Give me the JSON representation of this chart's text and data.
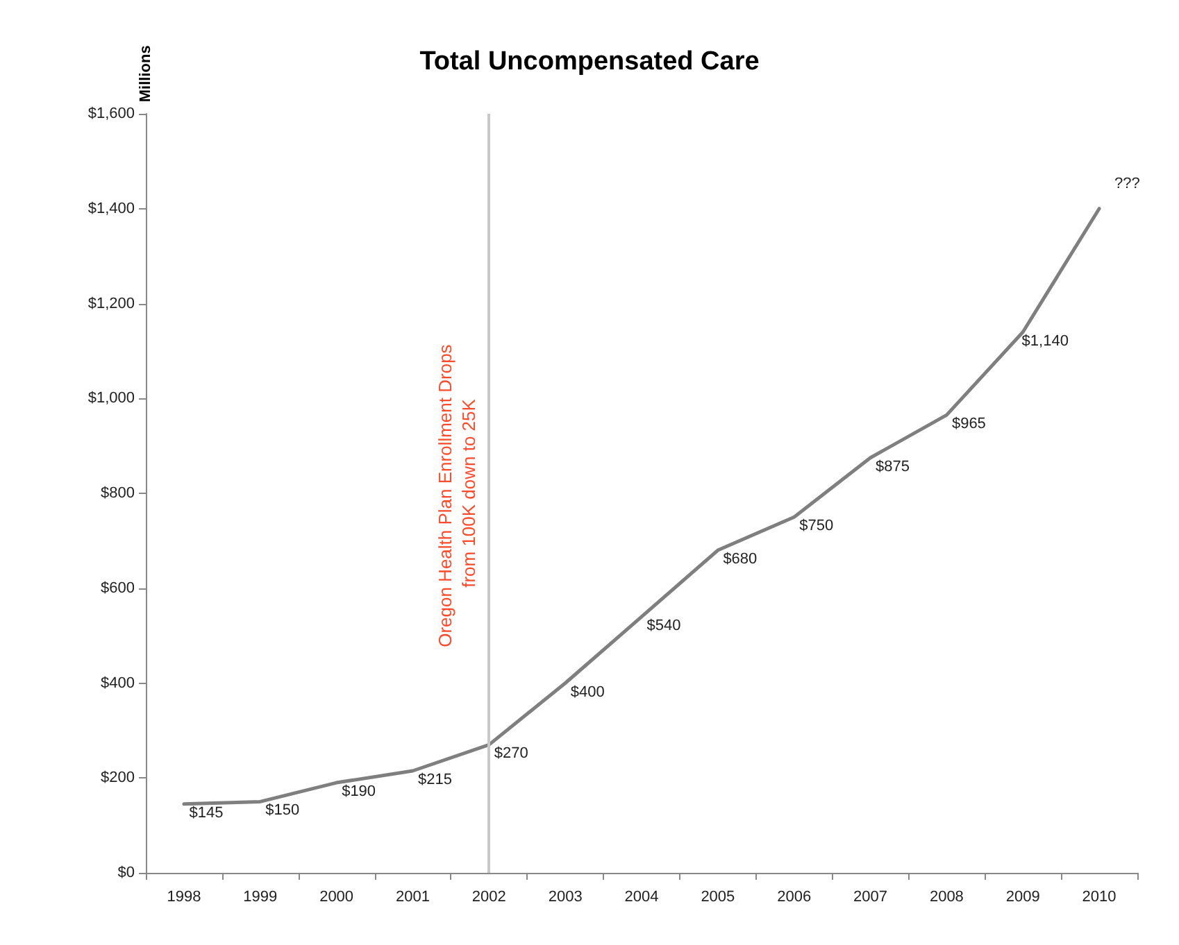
{
  "chart_data": {
    "type": "line",
    "title": "Total Uncompensated Care",
    "ylabel": "Millions",
    "categories": [
      "1998",
      "1999",
      "2000",
      "2001",
      "2002",
      "2003",
      "2004",
      "2005",
      "2006",
      "2007",
      "2008",
      "2009",
      "2010"
    ],
    "series": [
      {
        "color": "#7f7f7f",
        "values": [
          145,
          150,
          190,
          215,
          270,
          400,
          540,
          680,
          750,
          875,
          965,
          1140,
          1400
        ],
        "value_labels": [
          "$145",
          "$150",
          "$190",
          "$215",
          "$270",
          "$400",
          "$540",
          "$680",
          "$750",
          "$875",
          "$965",
          "$1,140",
          "???"
        ]
      }
    ],
    "ylim": [
      0,
      1600
    ],
    "yticks": [
      {
        "value": 0,
        "label": "$0"
      },
      {
        "value": 200,
        "label": "$200"
      },
      {
        "value": 400,
        "label": "$400"
      },
      {
        "value": 600,
        "label": "$600"
      },
      {
        "value": 800,
        "label": "$800"
      },
      {
        "value": 1000,
        "label": "$1,000"
      },
      {
        "value": 1200,
        "label": "$1,200"
      },
      {
        "value": 1400,
        "label": "$1,400"
      },
      {
        "value": 1600,
        "label": "$1,600"
      }
    ],
    "ref_lines": [
      {
        "axis": "x",
        "value": "2002",
        "label": "Oregon Health Plan Enrollment Drops from 100K down to 25K",
        "color": "#c8c8c8"
      }
    ],
    "grid": false,
    "marker": "none",
    "line_style": "solid"
  }
}
